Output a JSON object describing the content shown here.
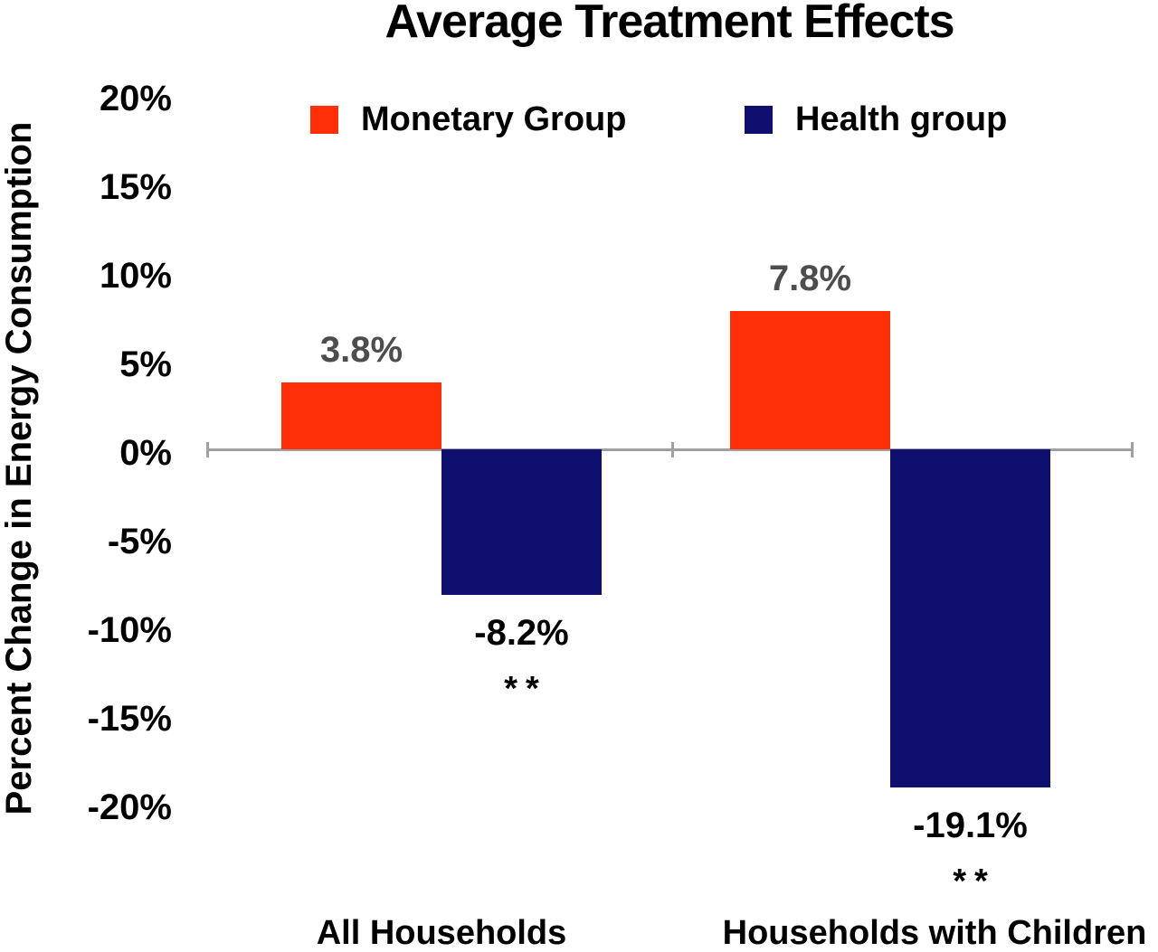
{
  "header": {
    "title": "Average Treatment Effects"
  },
  "y_axis": {
    "title": "Percent Change in Energy Consumption",
    "tick_labels": [
      "20%",
      "15%",
      "10%",
      "5%",
      "0%",
      "-5%",
      "-10%",
      "-15%",
      "-20%"
    ]
  },
  "legend": {
    "items": [
      {
        "label": "Monetary Group",
        "color": "#FF3008"
      },
      {
        "label": "Health group",
        "color": "#0F0F70"
      }
    ]
  },
  "colors": {
    "monetary": "#FF3008",
    "health": "#0F0F70",
    "axis": "#a0a0a0",
    "positive_label": "#4D4D4D",
    "negative_label": "#000000"
  },
  "chart_data": {
    "type": "bar",
    "title": "Average Treatment Effects",
    "ylabel": "Percent Change in Energy Consumption",
    "xlabel": "",
    "categories": [
      "All Households",
      "Households with Children"
    ],
    "series": [
      {
        "name": "Monetary Group",
        "color": "#FF3008",
        "values": [
          3.8,
          7.8
        ],
        "data_labels": [
          "3.8%",
          "7.8%"
        ],
        "significance": [
          "",
          ""
        ]
      },
      {
        "name": "Health group",
        "color": "#0F0F70",
        "values": [
          -8.2,
          -19.1
        ],
        "data_labels": [
          "-8.2%",
          "-19.1%"
        ],
        "significance": [
          "**",
          "**"
        ]
      }
    ],
    "ylim": [
      -20,
      20
    ],
    "ytick_step": 5,
    "ytick_labels": [
      "20%",
      "15%",
      "10%",
      "5%",
      "0%",
      "-5%",
      "-10%",
      "-15%",
      "-20%"
    ],
    "grid": false,
    "legend_position": "top-inside",
    "baseline": 0
  }
}
